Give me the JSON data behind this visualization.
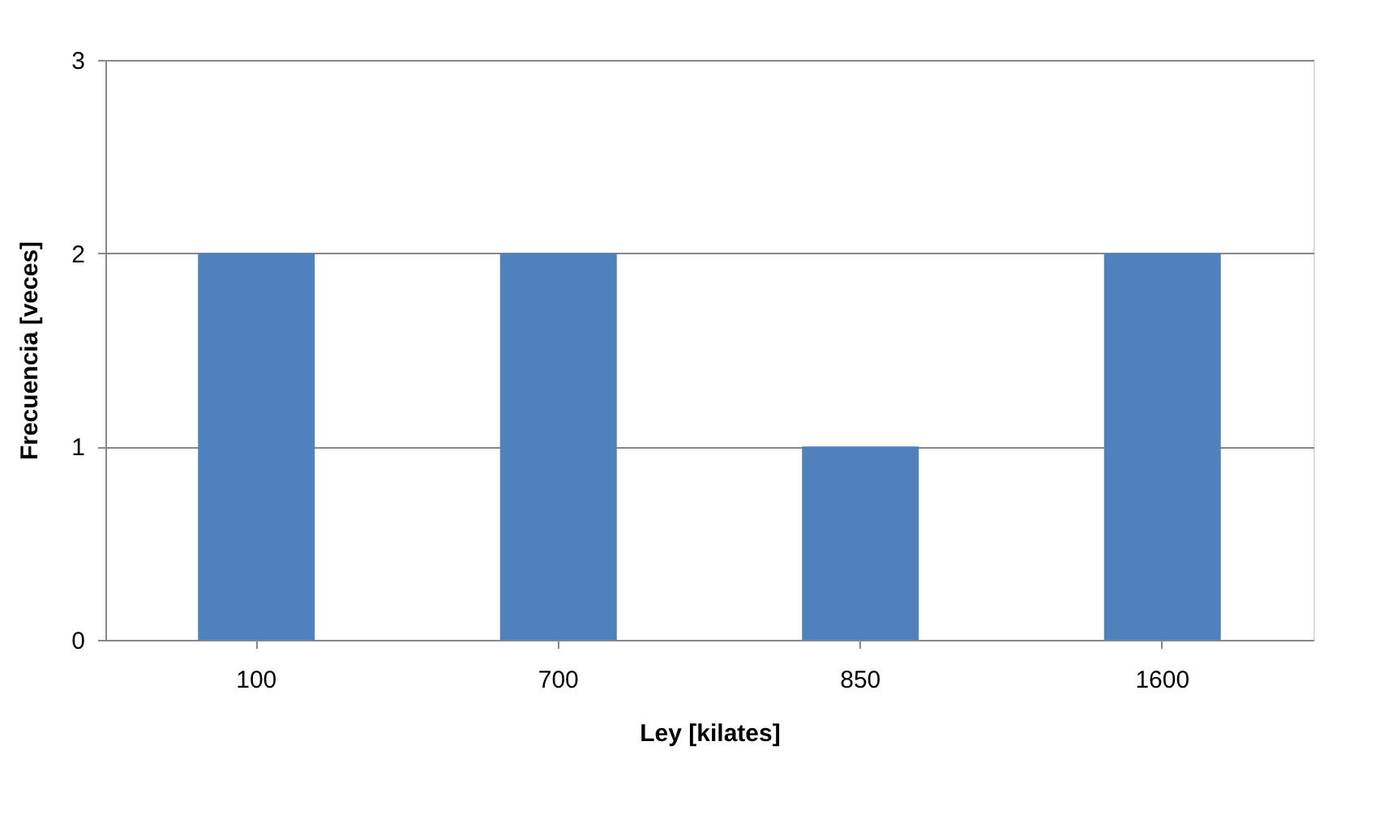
{
  "chart_data": {
    "type": "bar",
    "xlabel": "Ley [kilates]",
    "ylabel": "Frecuencia [veces]",
    "categories": [
      "100",
      "700",
      "850",
      "1600"
    ],
    "values": [
      2,
      2,
      1,
      2
    ],
    "color": "#4f81bd",
    "ylim": [
      0,
      3
    ],
    "yticks": [
      0,
      1,
      2,
      3
    ],
    "grid": "y"
  }
}
